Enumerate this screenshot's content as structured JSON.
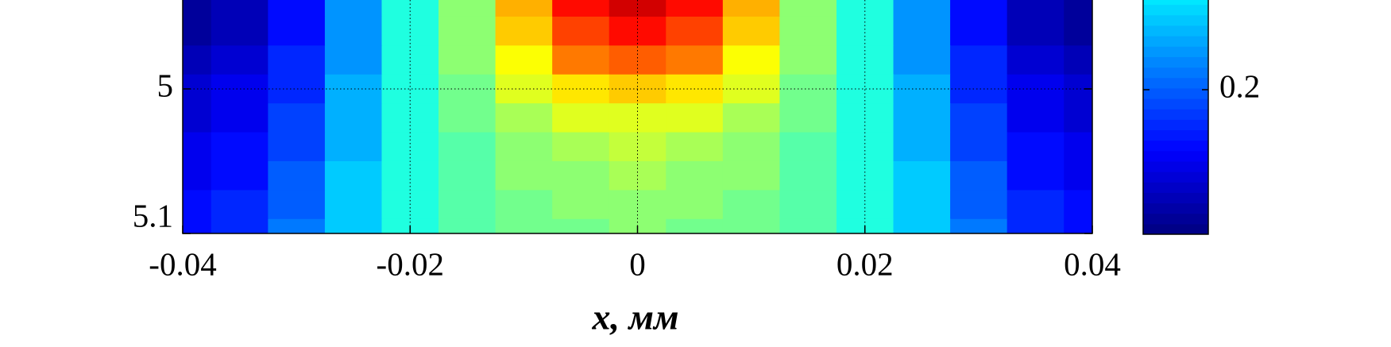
{
  "chart_data": {
    "type": "heatmap",
    "xlabel": "x, мм",
    "xlim": [
      -0.04,
      0.04
    ],
    "xticks": [
      -0.04,
      -0.02,
      0,
      0.02,
      0.04
    ],
    "ylim": [
      5.1,
      4.9385
    ],
    "yticks": [
      5,
      5.1
    ],
    "grid": true,
    "colormap": "jet",
    "clim": [
      0.12,
      0.49
    ],
    "cticks": [
      0.2
    ],
    "x": [
      -0.04,
      -0.035,
      -0.03,
      -0.025,
      -0.02,
      -0.015,
      -0.01,
      -0.005,
      0,
      0.005,
      0.01,
      0.015,
      0.02,
      0.025,
      0.03,
      0.035,
      0.04
    ],
    "y": [
      4.94,
      4.96,
      4.98,
      5.0,
      5.02,
      5.04,
      5.06,
      5.08,
      5.1
    ],
    "z": [
      [
        0.13,
        0.14,
        0.17,
        0.22,
        0.27,
        0.31,
        0.38,
        0.44,
        0.46,
        0.44,
        0.38,
        0.31,
        0.27,
        0.22,
        0.17,
        0.14,
        0.13
      ],
      [
        0.13,
        0.14,
        0.17,
        0.22,
        0.27,
        0.31,
        0.37,
        0.42,
        0.44,
        0.42,
        0.37,
        0.31,
        0.27,
        0.22,
        0.17,
        0.14,
        0.13
      ],
      [
        0.14,
        0.15,
        0.18,
        0.22,
        0.27,
        0.31,
        0.35,
        0.4,
        0.41,
        0.4,
        0.35,
        0.31,
        0.27,
        0.22,
        0.18,
        0.15,
        0.14
      ],
      [
        0.15,
        0.16,
        0.18,
        0.23,
        0.27,
        0.3,
        0.34,
        0.36,
        0.37,
        0.36,
        0.34,
        0.3,
        0.27,
        0.23,
        0.18,
        0.16,
        0.15
      ],
      [
        0.15,
        0.16,
        0.19,
        0.23,
        0.27,
        0.3,
        0.32,
        0.34,
        0.34,
        0.34,
        0.32,
        0.3,
        0.27,
        0.23,
        0.19,
        0.16,
        0.15
      ],
      [
        0.16,
        0.17,
        0.19,
        0.23,
        0.27,
        0.29,
        0.31,
        0.32,
        0.33,
        0.32,
        0.31,
        0.29,
        0.27,
        0.23,
        0.19,
        0.17,
        0.16
      ],
      [
        0.16,
        0.17,
        0.2,
        0.24,
        0.27,
        0.29,
        0.31,
        0.31,
        0.32,
        0.31,
        0.31,
        0.29,
        0.27,
        0.24,
        0.2,
        0.17,
        0.16
      ],
      [
        0.17,
        0.18,
        0.2,
        0.24,
        0.27,
        0.29,
        0.3,
        0.31,
        0.31,
        0.31,
        0.3,
        0.29,
        0.27,
        0.24,
        0.2,
        0.18,
        0.17
      ],
      [
        0.17,
        0.18,
        0.21,
        0.24,
        0.27,
        0.29,
        0.3,
        0.3,
        0.31,
        0.3,
        0.3,
        0.29,
        0.27,
        0.24,
        0.21,
        0.18,
        0.17
      ]
    ]
  }
}
